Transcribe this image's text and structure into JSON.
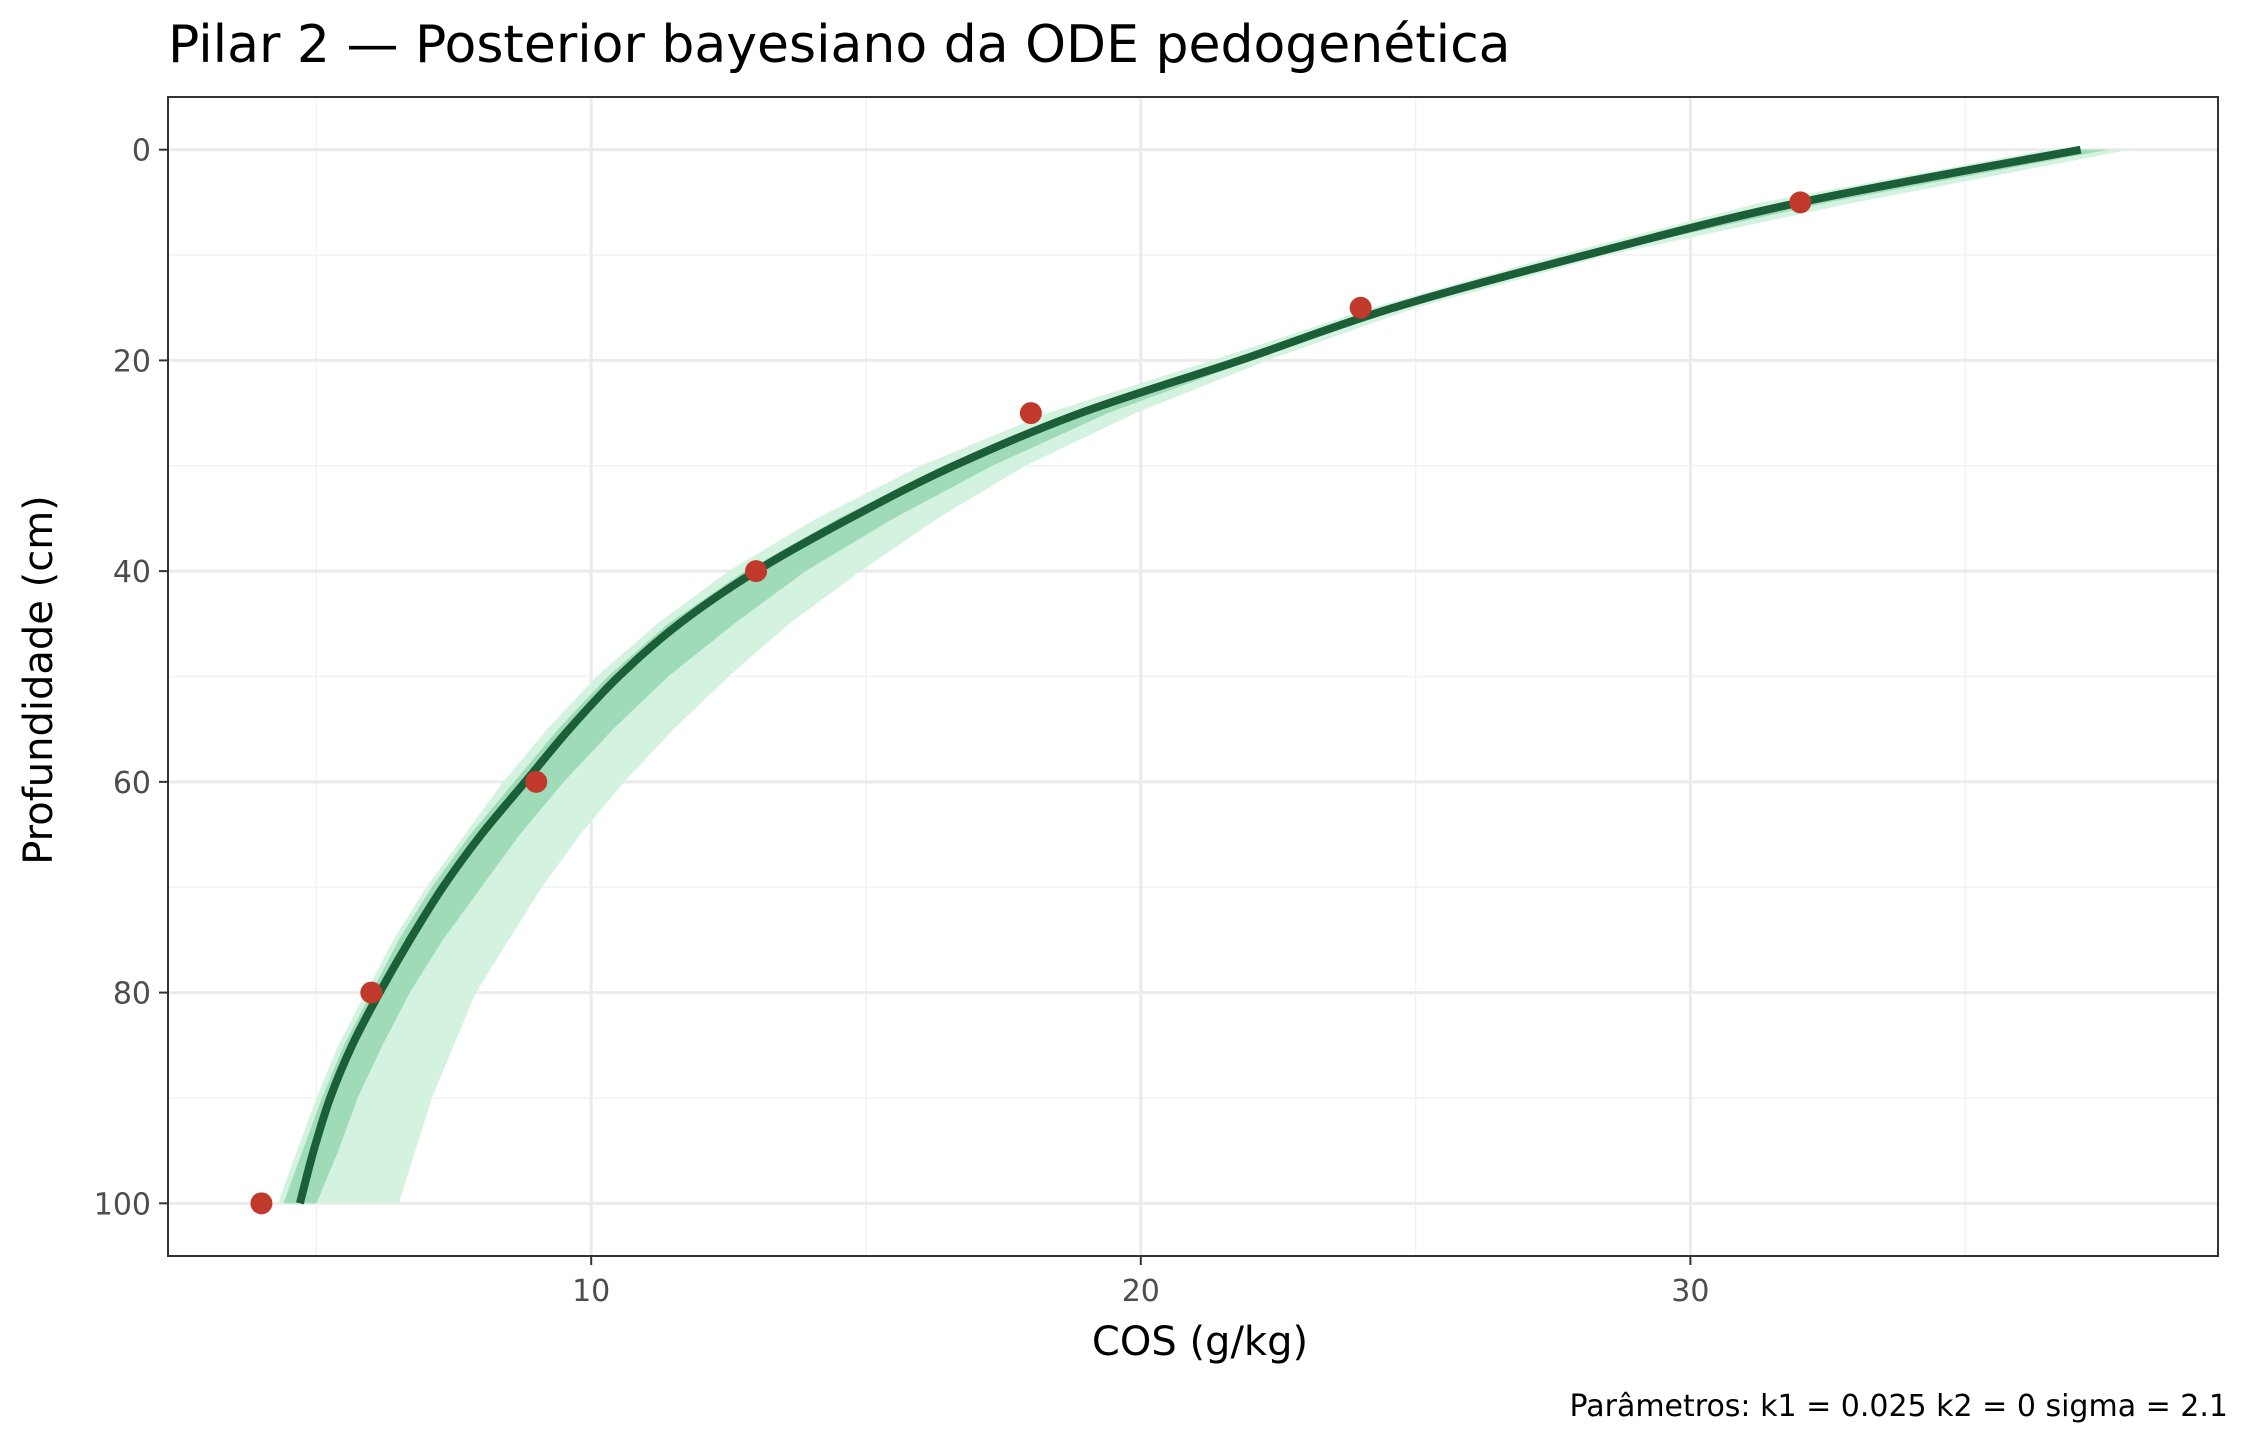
{
  "chart_data": {
    "type": "line",
    "title": "Pilar 2 — Posterior bayesiano da ODE pedogenética",
    "xlabel": "COS (g/kg)",
    "ylabel": "Profundidade (cm)",
    "caption": "Parâmetros: k1 = 0.025  k2 = 0  sigma = 2.1",
    "xlim": [
      2.3,
      39.6
    ],
    "ylim": [
      105,
      -5
    ],
    "y_reversed": true,
    "x_ticks": [
      10,
      20,
      30
    ],
    "x_tick_labels": [
      "10",
      "20",
      "30"
    ],
    "y_ticks": [
      0,
      20,
      40,
      60,
      80,
      100
    ],
    "y_tick_labels": [
      "0",
      "20",
      "40",
      "60",
      "80",
      "100"
    ],
    "grid": true,
    "colors": {
      "curve": "#1b5e38",
      "band_outer": "#d3f2df",
      "band_inner": "#9fdbb8",
      "points": "#c0392b"
    },
    "series": [
      {
        "kind": "band",
        "level": "outer",
        "depth": [
          0,
          5,
          10,
          15,
          20,
          25,
          30,
          35,
          40,
          45,
          50,
          55,
          60,
          65,
          70,
          75,
          80,
          85,
          90,
          95,
          100
        ],
        "lower": [
          36.5,
          31.3,
          27.6,
          24.2,
          21.3,
          18.3,
          16.0,
          14.1,
          12.5,
          11.2,
          10.1,
          9.2,
          8.4,
          7.7,
          7.0,
          6.4,
          5.9,
          5.4,
          5.0,
          4.65,
          4.3
        ],
        "upper": [
          38.0,
          33.0,
          28.5,
          25.0,
          22.3,
          19.9,
          17.9,
          16.3,
          14.9,
          13.6,
          12.5,
          11.5,
          10.6,
          9.8,
          9.1,
          8.5,
          7.9,
          7.5,
          7.1,
          6.8,
          6.5
        ]
      },
      {
        "kind": "band",
        "level": "inner",
        "depth": [
          0,
          5,
          10,
          15,
          20,
          25,
          30,
          35,
          40,
          45,
          50,
          55,
          60,
          65,
          70,
          75,
          80,
          85,
          90,
          95,
          100
        ],
        "lower": [
          36.9,
          31.7,
          27.9,
          24.5,
          21.6,
          18.7,
          16.4,
          14.5,
          12.8,
          11.4,
          10.3,
          9.4,
          8.6,
          7.8,
          7.1,
          6.5,
          6.0,
          5.5,
          5.1,
          4.75,
          4.4
        ],
        "upper": [
          37.6,
          32.5,
          28.2,
          24.7,
          22.0,
          19.4,
          17.3,
          15.5,
          13.9,
          12.6,
          11.4,
          10.4,
          9.5,
          8.7,
          8.0,
          7.3,
          6.7,
          6.2,
          5.75,
          5.4,
          5.0
        ]
      },
      {
        "kind": "line",
        "depth": [
          0,
          5,
          10,
          15,
          20,
          25,
          30,
          35,
          40,
          45,
          50,
          55,
          60,
          65,
          70,
          75,
          80,
          85,
          90,
          95,
          100
        ],
        "cos": [
          37.1,
          32.0,
          28.1,
          24.6,
          21.8,
          18.9,
          16.6,
          14.7,
          13.0,
          11.6,
          10.5,
          9.6,
          8.8,
          8.0,
          7.3,
          6.7,
          6.15,
          5.65,
          5.25,
          4.95,
          4.7
        ]
      },
      {
        "kind": "points",
        "cos": [
          32,
          24,
          18,
          13,
          9,
          6,
          4
        ],
        "depth": [
          5,
          15,
          25,
          40,
          60,
          80,
          100
        ]
      }
    ]
  }
}
